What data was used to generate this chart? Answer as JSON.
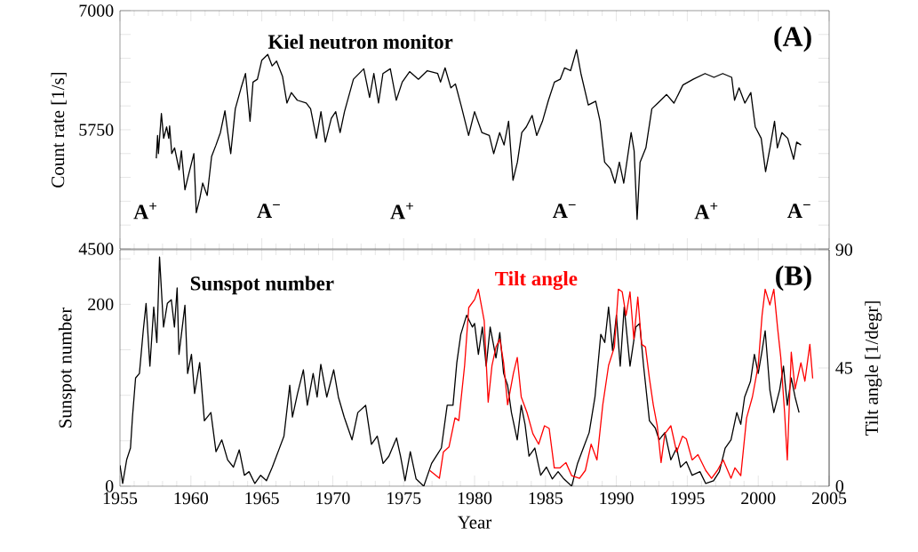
{
  "chart_data": [
    {
      "type": "line",
      "ylabel": "Count rate [1/s]",
      "xlim": [
        1955,
        2005
      ],
      "xticks": [
        1955,
        1960,
        1965,
        1970,
        1975,
        1980,
        1985,
        1990,
        1995,
        2000,
        2005
      ],
      "ylim": [
        4500,
        7000
      ],
      "yticks": [
        4500,
        {
          "value": 4750,
          "label": null
        },
        {
          "value": 5000,
          "label": null
        },
        {
          "value": 5250,
          "label": null
        },
        {
          "value": 5500,
          "label": null
        },
        5750,
        {
          "value": 6000,
          "label": null
        },
        {
          "value": 6250,
          "label": null
        },
        {
          "value": 6500,
          "label": null
        },
        {
          "value": 6750,
          "label": null
        },
        7000
      ],
      "tick_labels": "y",
      "series": [
        {
          "name": "Kiel neutron monitor",
          "color": "#000000",
          "x": [
            1957.56,
            1957.65,
            1957.71,
            1957.92,
            1958.08,
            1958.29,
            1958.44,
            1958.5,
            1958.65,
            1958.85,
            1959.17,
            1959.33,
            1959.58,
            1959.79,
            1960.21,
            1960.38,
            1960.63,
            1960.83,
            1961.15,
            1961.46,
            1961.77,
            1962.08,
            1962.4,
            1962.6,
            1962.81,
            1963.13,
            1963.54,
            1963.85,
            1964.17,
            1964.38,
            1964.69,
            1965.0,
            1965.42,
            1965.73,
            1966.04,
            1966.46,
            1966.77,
            1967.08,
            1967.5,
            1968.13,
            1968.44,
            1968.85,
            1969.17,
            1969.48,
            1969.9,
            1970.21,
            1970.52,
            1970.83,
            1971.46,
            1972.19,
            1972.6,
            1972.9,
            1973.23,
            1973.54,
            1974.06,
            1974.48,
            1974.9,
            1975.42,
            1976.04,
            1976.67,
            1977.4,
            1977.6,
            1977.92,
            1978.33,
            1978.65,
            1979.06,
            1979.58,
            1980.0,
            1980.52,
            1981.04,
            1981.35,
            1981.77,
            1982.08,
            1982.4,
            1982.71,
            1983.02,
            1983.33,
            1983.65,
            1984.06,
            1984.38,
            1984.79,
            1985.21,
            1985.63,
            1986.04,
            1986.35,
            1986.77,
            1987.19,
            1987.5,
            1988.02,
            1988.54,
            1988.85,
            1989.17,
            1989.58,
            1989.9,
            1990.21,
            1990.52,
            1991.04,
            1991.25,
            1991.46,
            1991.67,
            1992.08,
            1992.5,
            1992.92,
            1993.54,
            1994.06,
            1994.69,
            1995.42,
            1996.25,
            1996.88,
            1997.5,
            1998.13,
            1998.33,
            1998.65,
            1999.06,
            1999.48,
            1999.79,
            2000.21,
            2000.52,
            2000.83,
            2001.15,
            2001.35,
            2001.67,
            2002.08,
            2002.5,
            2002.71,
            2003.02
          ],
          "values": [
            5450,
            5690,
            5500,
            5920,
            5660,
            5780,
            5660,
            5790,
            5500,
            5560,
            5330,
            5530,
            5120,
            5250,
            5500,
            4880,
            5030,
            5190,
            5060,
            5470,
            5590,
            5720,
            5950,
            5720,
            5500,
            5970,
            6190,
            6340,
            5840,
            6250,
            6280,
            6480,
            6540,
            6420,
            6470,
            6310,
            6030,
            6140,
            6060,
            6030,
            5970,
            5660,
            5940,
            5620,
            5870,
            5940,
            5720,
            5940,
            6280,
            6390,
            6090,
            6340,
            6030,
            6340,
            6390,
            6060,
            6250,
            6360,
            6280,
            6370,
            6340,
            6250,
            6400,
            6190,
            6230,
            6000,
            5690,
            5940,
            5720,
            5690,
            5500,
            5720,
            5590,
            5840,
            5220,
            5410,
            5720,
            5780,
            5900,
            5690,
            5840,
            6060,
            6250,
            6280,
            6400,
            6370,
            6590,
            6340,
            6010,
            6050,
            5840,
            5410,
            5340,
            5190,
            5410,
            5190,
            5720,
            5530,
            4810,
            5410,
            5560,
            5970,
            6030,
            6120,
            6030,
            6220,
            6280,
            6340,
            6300,
            6340,
            6300,
            6060,
            6190,
            6030,
            6140,
            5780,
            5660,
            5310,
            5560,
            5840,
            5560,
            5720,
            5660,
            5440,
            5620,
            5590
          ]
        }
      ],
      "annotations": [
        "(A)",
        "A$^{+}$",
        "A$^{−}$",
        "A$^{+}$",
        "A$^{−}$",
        "A$^{+}$",
        "A$^{−}$"
      ]
    },
    {
      "type": "line",
      "xlabel": "Year",
      "ylabel": "Sunspot number",
      "y2label": "Tilt angle [1/degr]",
      "xlim": [
        1955,
        2005
      ],
      "xticks": [
        1955,
        1960,
        1965,
        1970,
        1975,
        1980,
        1985,
        1990,
        1995,
        2000,
        2005
      ],
      "ylim": [
        0,
        260
      ],
      "yticks": [
        0,
        {
          "value": 50,
          "label": null
        },
        {
          "value": 100,
          "label": null
        },
        {
          "value": 150,
          "label": null
        },
        200,
        {
          "value": 250,
          "label": null
        }
      ],
      "y2lim": [
        0,
        90
      ],
      "y2ticks": [
        0,
        45,
        90
      ],
      "series": [
        {
          "name": "Sunspot number",
          "color": "#000000",
          "x": [
            1955.0,
            1955.19,
            1955.47,
            1955.74,
            1955.88,
            1956.1,
            1956.37,
            1956.64,
            1956.84,
            1957.11,
            1957.38,
            1957.6,
            1957.79,
            1958.07,
            1958.34,
            1958.62,
            1958.84,
            1959.03,
            1959.16,
            1959.58,
            1959.77,
            1960.04,
            1960.26,
            1960.62,
            1960.95,
            1961.41,
            1961.77,
            1962.18,
            1962.59,
            1963.0,
            1963.41,
            1963.77,
            1964.1,
            1964.51,
            1964.92,
            1965.33,
            1965.74,
            1966.15,
            1966.56,
            1966.97,
            1967.16,
            1967.52,
            1967.93,
            1968.21,
            1968.62,
            1968.9,
            1969.16,
            1969.58,
            1970.07,
            1970.4,
            1970.81,
            1971.36,
            1971.77,
            1972.32,
            1972.73,
            1973.14,
            1973.55,
            1973.96,
            1974.5,
            1974.78,
            1975.1,
            1975.47,
            1975.88,
            1976.42,
            1976.97,
            1977.66,
            1978.07,
            1978.48,
            1978.75,
            1979.03,
            1979.44,
            1979.85,
            1980.0,
            1980.27,
            1980.55,
            1980.82,
            1981.1,
            1981.51,
            1981.78,
            1982.05,
            1982.33,
            1982.6,
            1983.01,
            1983.29,
            1983.56,
            1983.84,
            1984.25,
            1984.66,
            1985.07,
            1985.48,
            1985.89,
            1986.3,
            1986.85,
            1987.26,
            1987.67,
            1988.08,
            1988.49,
            1988.9,
            1989.18,
            1989.45,
            1989.73,
            1990.0,
            1990.27,
            1990.55,
            1990.96,
            1991.37,
            1991.64,
            1991.92,
            1992.33,
            1992.74,
            1993.01,
            1993.42,
            1993.84,
            1994.25,
            1994.52,
            1994.93,
            1995.34,
            1995.89,
            1996.3,
            1996.85,
            1997.26,
            1997.67,
            1998.08,
            1998.49,
            1998.77,
            1999.04,
            1999.45,
            1999.73,
            2000.0,
            2000.27,
            2000.49,
            2000.82,
            2001.1,
            2001.51,
            2001.78,
            2002.05,
            2002.33,
            2002.6,
            2002.88
          ],
          "values": [
            23,
            3,
            29,
            42,
            76,
            119,
            124,
            171,
            201,
            132,
            197,
            158,
            252,
            175,
            201,
            205,
            175,
            218,
            145,
            199,
            124,
            145,
            102,
            136,
            72,
            81,
            38,
            51,
            29,
            21,
            40,
            12,
            16,
            3,
            12,
            6,
            21,
            38,
            55,
            111,
            76,
            102,
            128,
            89,
            124,
            98,
            134,
            98,
            128,
            98,
            76,
            51,
            81,
            89,
            46,
            55,
            25,
            33,
            53,
            33,
            6,
            38,
            8,
            0,
            25,
            42,
            89,
            89,
            136,
            167,
            188,
            175,
            179,
            145,
            175,
            132,
            175,
            141,
            169,
            124,
            111,
            81,
            51,
            89,
            68,
            33,
            42,
            12,
            21,
            8,
            16,
            8,
            0,
            25,
            42,
            59,
            98,
            167,
            158,
            197,
            149,
            188,
            132,
            197,
            132,
            175,
            179,
            132,
            72,
            64,
            51,
            59,
            29,
            42,
            21,
            27,
            12,
            16,
            3,
            6,
            16,
            42,
            51,
            81,
            68,
            98,
            115,
            145,
            124,
            149,
            171,
            106,
            81,
            106,
            132,
            89,
            119,
            98,
            81
          ]
        },
        {
          "name": "Tilt angle",
          "color": "#ff0000",
          "axis": "y2",
          "x": [
            1976.84,
            1977.52,
            1977.8,
            1978.2,
            1978.62,
            1978.89,
            1979.3,
            1979.59,
            1980.0,
            1980.27,
            1980.68,
            1980.96,
            1981.23,
            1981.51,
            1981.78,
            1982.05,
            1982.33,
            1982.74,
            1983.01,
            1983.29,
            1983.7,
            1984.11,
            1984.52,
            1984.93,
            1985.26,
            1985.62,
            1986.03,
            1986.44,
            1986.85,
            1987.4,
            1987.81,
            1988.22,
            1988.63,
            1989.04,
            1989.45,
            1989.86,
            1990.14,
            1990.41,
            1990.68,
            1990.96,
            1991.23,
            1991.51,
            1991.78,
            1992.05,
            1992.33,
            1992.6,
            1992.88,
            1993.15,
            1993.42,
            1993.84,
            1994.25,
            1994.66,
            1994.93,
            1995.34,
            1995.75,
            1996.3,
            1996.71,
            1997.12,
            1997.53,
            1998.08,
            1998.36,
            1998.77,
            1999.18,
            1999.59,
            2000.0,
            2000.27,
            2000.49,
            2000.82,
            2001.1,
            2001.37,
            2001.59,
            2001.86,
            2002.05,
            2002.33,
            2002.6,
            2003.01,
            2003.29,
            2003.64,
            2003.84
          ],
          "values": [
            6,
            3,
            13,
            15,
            26,
            25,
            46,
            68,
            71,
            75,
            63,
            32,
            46,
            53,
            56,
            47,
            31,
            43,
            49,
            34,
            28,
            20,
            16,
            23,
            22,
            7,
            7,
            9,
            4,
            3,
            6,
            16,
            10,
            31,
            46,
            53,
            75,
            74,
            65,
            74,
            56,
            72,
            54,
            53,
            41,
            31,
            23,
            9,
            20,
            23,
            13,
            19,
            18,
            10,
            12,
            6,
            3,
            6,
            10,
            3,
            7,
            4,
            26,
            34,
            46,
            65,
            75,
            69,
            75,
            60,
            49,
            28,
            10,
            51,
            37,
            47,
            40,
            54,
            41
          ]
        }
      ],
      "annotations": [
        "(B)"
      ]
    }
  ]
}
